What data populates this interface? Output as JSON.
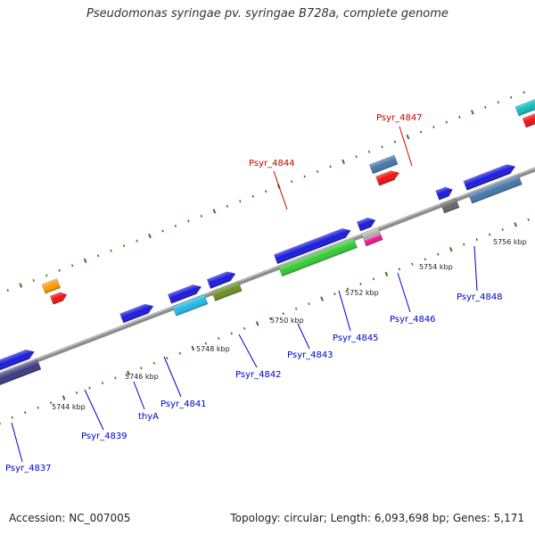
{
  "title": "Pseudomonas syringae pv. syringae B728a, complete genome",
  "footer": {
    "accession": "Accession: NC_007005",
    "stats": "Topology: circular; Length: 6,093,698 bp; Genes: 5,171"
  },
  "colors": {
    "backbone": "#8c8c8c",
    "tick": "#2e7d1e",
    "label_blue": "#0000cc",
    "label_red": "#cc0000"
  },
  "map": {
    "kbp_ticks": [
      {
        "kbp": 5744,
        "label": "5744 kbp"
      },
      {
        "kbp": 5746,
        "label": "5746 kbp"
      },
      {
        "kbp": 5748,
        "label": "5748 kbp"
      },
      {
        "kbp": 5750,
        "label": "5750 kbp"
      },
      {
        "kbp": 5752,
        "label": "5752 kbp"
      },
      {
        "kbp": 5754,
        "label": "5754 kbp"
      },
      {
        "kbp": 5756,
        "label": "5756 kbp"
      }
    ],
    "labels": [
      {
        "text": "Psyr_4837",
        "color": "#0000cc"
      },
      {
        "text": "Psyr_4839",
        "color": "#0000cc"
      },
      {
        "text": "thyA",
        "color": "#0000cc"
      },
      {
        "text": "Psyr_4841",
        "color": "#0000cc"
      },
      {
        "text": "Psyr_4842",
        "color": "#0000cc"
      },
      {
        "text": "Psyr_4843",
        "color": "#0000cc"
      },
      {
        "text": "Psyr_4844",
        "color": "#cc0000"
      },
      {
        "text": "Psyr_4845",
        "color": "#0000cc"
      },
      {
        "text": "Psyr_4846",
        "color": "#0000cc"
      },
      {
        "text": "Psyr_4847",
        "color": "#cc0000"
      },
      {
        "text": "Psyr_4848",
        "color": "#0000cc"
      }
    ],
    "features": [
      {
        "name": "feature-4837-gene",
        "color": "#1a1add"
      },
      {
        "name": "feature-4837-cds",
        "color": "#3b3b80"
      },
      {
        "name": "feature-orange-gene",
        "color": "#ff9900"
      },
      {
        "name": "feature-red-cds-a",
        "color": "#ee1111"
      },
      {
        "name": "feature-4839-gene",
        "color": "#1a1add"
      },
      {
        "name": "feature-thyA-gene",
        "color": "#1a1add"
      },
      {
        "name": "feature-thyA-cds",
        "color": "#22b8e8"
      },
      {
        "name": "feature-4841-gene",
        "color": "#1a1add"
      },
      {
        "name": "feature-4841-cds",
        "color": "#6b8e23"
      },
      {
        "name": "feature-4842-gene",
        "color": "#1a1add"
      },
      {
        "name": "feature-4842-cds",
        "color": "#33cc33"
      },
      {
        "name": "feature-4843-gene",
        "color": "#1a1add"
      },
      {
        "name": "feature-4843-grey",
        "color": "#bbbbbb"
      },
      {
        "name": "feature-4843-cds",
        "color": "#ee1188"
      },
      {
        "name": "feature-4844-gene",
        "color": "#4477aa"
      },
      {
        "name": "feature-4844-cds",
        "color": "#ee1111"
      },
      {
        "name": "feature-4845-gene",
        "color": "#1a1add"
      },
      {
        "name": "feature-4845-cds",
        "color": "#666666"
      },
      {
        "name": "feature-4846-gene",
        "color": "#1a1add"
      },
      {
        "name": "feature-4846-cds",
        "color": "#4477aa"
      },
      {
        "name": "feature-4847-gene",
        "color": "#11bbbb"
      },
      {
        "name": "feature-4847-cds",
        "color": "#ee1111"
      },
      {
        "name": "feature-4848-gene",
        "color": "#1a1add"
      },
      {
        "name": "feature-4848-cds",
        "color": "#666666"
      },
      {
        "name": "feature-next-gene",
        "color": "#1a1add"
      },
      {
        "name": "feature-next-cds",
        "color": "#666666"
      },
      {
        "name": "feature-edge-gene",
        "color": "#1a1add"
      },
      {
        "name": "feature-edge-cds",
        "color": "#333366"
      }
    ]
  }
}
